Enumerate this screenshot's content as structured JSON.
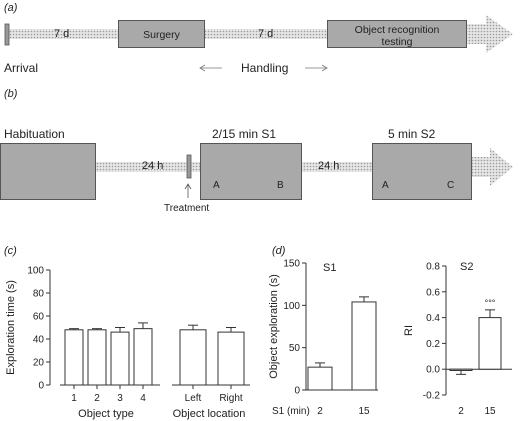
{
  "panel_a": {
    "label": "(a)",
    "day1": "7 d",
    "surgery": "Surgery",
    "day2": "7 d",
    "testing": "Object recognition testing",
    "arrival": "Arrival",
    "handling": "Handling"
  },
  "panel_b": {
    "label": "(b)",
    "habituation": "Habituation",
    "gap1": "24 h",
    "s1": "2/15 min S1",
    "gap2": "24 h",
    "s2": "5 min S2",
    "treatment": "Treatment",
    "obj_a1": "A",
    "obj_b": "B",
    "obj_a2": "A",
    "obj_c": "C"
  },
  "panel_c_label": "(c)",
  "panel_d_label": "(d)",
  "chart_data": [
    {
      "type": "bar",
      "panel": "(c)",
      "ylabel": "Exploration time (s)",
      "ylim": [
        0,
        100
      ],
      "yticks": [
        "0",
        "20",
        "40",
        "60",
        "80",
        "100"
      ],
      "groups": [
        {
          "xlabel": "Object type",
          "categories": [
            "1",
            "2",
            "3",
            "4"
          ],
          "values": [
            48,
            48,
            46,
            49
          ],
          "errors": [
            1,
            1,
            4,
            5
          ]
        },
        {
          "xlabel": "Object location",
          "categories": [
            "Left",
            "Right"
          ],
          "values": [
            48,
            46
          ],
          "errors": [
            4,
            4
          ]
        }
      ]
    },
    {
      "type": "bar",
      "panel": "(d)",
      "title": "S1",
      "ylabel": "Object exploration (s)",
      "ylim": [
        0,
        150
      ],
      "yticks": [
        "0",
        "50",
        "100",
        "150"
      ],
      "xlabel_prefix": "S1 (min)",
      "categories": [
        "2",
        "15"
      ],
      "values": [
        27,
        104
      ],
      "errors": [
        5,
        6
      ]
    },
    {
      "type": "bar",
      "panel": "(d)",
      "title": "S2",
      "ylabel": "RI",
      "ylim": [
        -0.2,
        0.8
      ],
      "yticks": [
        "-0.2",
        "0.0",
        "0.2",
        "0.4",
        "0.6",
        "0.8"
      ],
      "categories": [
        "2",
        "15"
      ],
      "values": [
        -0.01,
        0.4
      ],
      "errors": [
        0.03,
        0.06
      ],
      "annotation": "°°°"
    }
  ]
}
